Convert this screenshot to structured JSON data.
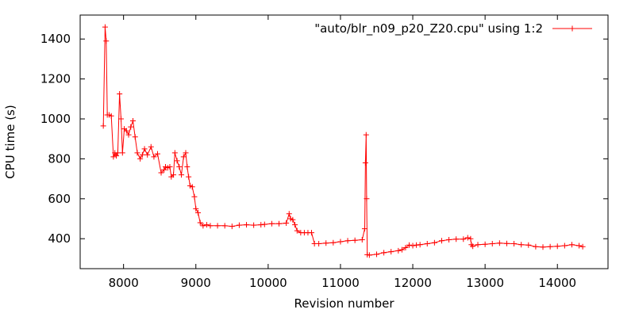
{
  "chart_data": {
    "type": "line",
    "title": "",
    "xlabel": "Revision number",
    "ylabel": "CPU time (s)",
    "xlim": [
      7400,
      14700
    ],
    "ylim": [
      250,
      1520
    ],
    "xticks": [
      8000,
      9000,
      10000,
      11000,
      12000,
      13000,
      14000
    ],
    "yticks": [
      400,
      600,
      800,
      1000,
      1200,
      1400
    ],
    "grid": false,
    "legend_position": "top-right",
    "color": "#ff0000",
    "series": [
      {
        "name": "\"auto/blr_n09_p20_Z20.cpu\" using 1:2",
        "points": [
          [
            7720,
            965
          ],
          [
            7745,
            1460
          ],
          [
            7760,
            1390
          ],
          [
            7775,
            1020
          ],
          [
            7800,
            1020
          ],
          [
            7830,
            1015
          ],
          [
            7860,
            810
          ],
          [
            7880,
            830
          ],
          [
            7900,
            815
          ],
          [
            7920,
            830
          ],
          [
            7945,
            1125
          ],
          [
            7965,
            1000
          ],
          [
            7985,
            830
          ],
          [
            8010,
            950
          ],
          [
            8040,
            940
          ],
          [
            8070,
            920
          ],
          [
            8100,
            960
          ],
          [
            8130,
            990
          ],
          [
            8160,
            910
          ],
          [
            8190,
            830
          ],
          [
            8230,
            800
          ],
          [
            8260,
            820
          ],
          [
            8290,
            850
          ],
          [
            8330,
            820
          ],
          [
            8380,
            860
          ],
          [
            8420,
            810
          ],
          [
            8470,
            825
          ],
          [
            8520,
            730
          ],
          [
            8560,
            745
          ],
          [
            8580,
            760
          ],
          [
            8610,
            755
          ],
          [
            8640,
            760
          ],
          [
            8660,
            710
          ],
          [
            8690,
            720
          ],
          [
            8710,
            830
          ],
          [
            8740,
            790
          ],
          [
            8770,
            760
          ],
          [
            8800,
            720
          ],
          [
            8830,
            810
          ],
          [
            8860,
            830
          ],
          [
            8880,
            760
          ],
          [
            8900,
            710
          ],
          [
            8920,
            665
          ],
          [
            8950,
            660
          ],
          [
            8980,
            610
          ],
          [
            9000,
            550
          ],
          [
            9030,
            530
          ],
          [
            9060,
            480
          ],
          [
            9100,
            465
          ],
          [
            9150,
            470
          ],
          [
            9200,
            465
          ],
          [
            9300,
            465
          ],
          [
            9400,
            465
          ],
          [
            9500,
            462
          ],
          [
            9600,
            468
          ],
          [
            9700,
            470
          ],
          [
            9800,
            468
          ],
          [
            9900,
            470
          ],
          [
            9950,
            472
          ],
          [
            10050,
            475
          ],
          [
            10150,
            475
          ],
          [
            10250,
            478
          ],
          [
            10290,
            525
          ],
          [
            10310,
            500
          ],
          [
            10340,
            495
          ],
          [
            10370,
            470
          ],
          [
            10400,
            440
          ],
          [
            10450,
            430
          ],
          [
            10500,
            430
          ],
          [
            10550,
            430
          ],
          [
            10600,
            430
          ],
          [
            10640,
            375
          ],
          [
            10700,
            375
          ],
          [
            10800,
            378
          ],
          [
            10900,
            380
          ],
          [
            11000,
            385
          ],
          [
            11100,
            390
          ],
          [
            11200,
            392
          ],
          [
            11300,
            395
          ],
          [
            11335,
            450
          ],
          [
            11345,
            780
          ],
          [
            11355,
            920
          ],
          [
            11362,
            600
          ],
          [
            11370,
            320
          ],
          [
            11400,
            318
          ],
          [
            11500,
            322
          ],
          [
            11600,
            330
          ],
          [
            11700,
            335
          ],
          [
            11800,
            340
          ],
          [
            11850,
            345
          ],
          [
            11900,
            355
          ],
          [
            11950,
            368
          ],
          [
            12000,
            365
          ],
          [
            12050,
            368
          ],
          [
            12100,
            370
          ],
          [
            12200,
            375
          ],
          [
            12300,
            380
          ],
          [
            12400,
            390
          ],
          [
            12500,
            395
          ],
          [
            12600,
            398
          ],
          [
            12700,
            398
          ],
          [
            12760,
            405
          ],
          [
            12800,
            400
          ],
          [
            12810,
            370
          ],
          [
            12830,
            362
          ],
          [
            12900,
            370
          ],
          [
            13000,
            372
          ],
          [
            13100,
            375
          ],
          [
            13200,
            378
          ],
          [
            13300,
            376
          ],
          [
            13400,
            375
          ],
          [
            13500,
            370
          ],
          [
            13600,
            368
          ],
          [
            13700,
            360
          ],
          [
            13800,
            358
          ],
          [
            13900,
            360
          ],
          [
            14000,
            362
          ],
          [
            14100,
            365
          ],
          [
            14200,
            370
          ],
          [
            14300,
            365
          ],
          [
            14350,
            360
          ]
        ]
      }
    ]
  }
}
